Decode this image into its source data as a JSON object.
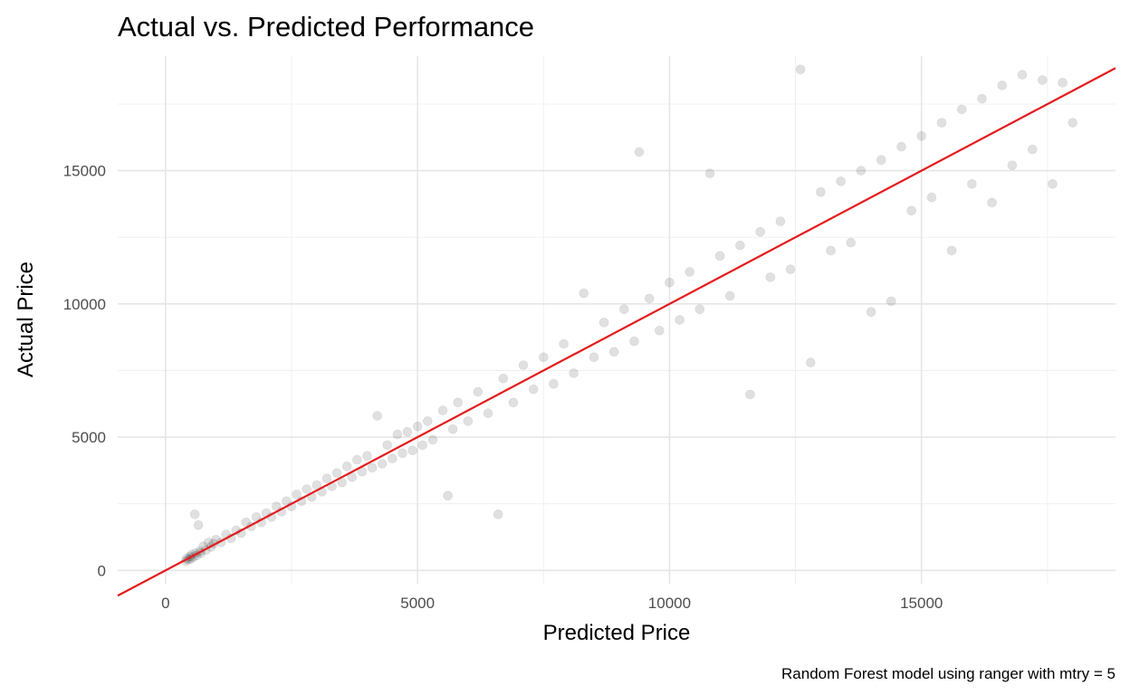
{
  "chart_data": {
    "type": "scatter",
    "title": "Actual vs. Predicted Performance",
    "caption": "Random Forest model using ranger with mtry = 5",
    "xlabel": "Predicted Price",
    "ylabel": "Actual Price",
    "xlim": [
      -950,
      18850
    ],
    "ylim": [
      -500,
      19300
    ],
    "x_ticks": [
      0,
      5000,
      10000,
      15000
    ],
    "y_ticks": [
      0,
      5000,
      10000,
      15000
    ],
    "x_tick_labels": [
      "0",
      "5000",
      "10000",
      "15000"
    ],
    "y_tick_labels": [
      "0",
      "5000",
      "10000",
      "15000"
    ],
    "grid": true,
    "legend": "none",
    "reference_line": {
      "type": "identity",
      "slope": 1,
      "intercept": 0,
      "color": "#e41a1c"
    },
    "point_color": "#000000",
    "point_alpha": 0.12,
    "series": [
      {
        "values": [
          [
            400,
            350
          ],
          [
            420,
            450
          ],
          [
            450,
            400
          ],
          [
            480,
            520
          ],
          [
            500,
            430
          ],
          [
            520,
            600
          ],
          [
            550,
            500
          ],
          [
            580,
            2100
          ],
          [
            600,
            650
          ],
          [
            620,
            560
          ],
          [
            650,
            1700
          ],
          [
            680,
            720
          ],
          [
            700,
            640
          ],
          [
            750,
            900
          ],
          [
            800,
            760
          ],
          [
            850,
            1050
          ],
          [
            900,
            880
          ],
          [
            950,
            1000
          ],
          [
            1000,
            1150
          ],
          [
            1100,
            1050
          ],
          [
            1200,
            1350
          ],
          [
            1300,
            1200
          ],
          [
            1400,
            1500
          ],
          [
            1500,
            1400
          ],
          [
            1600,
            1800
          ],
          [
            1700,
            1650
          ],
          [
            1800,
            2000
          ],
          [
            1900,
            1800
          ],
          [
            2000,
            2150
          ],
          [
            2100,
            2000
          ],
          [
            2200,
            2400
          ],
          [
            2300,
            2200
          ],
          [
            2400,
            2600
          ],
          [
            2500,
            2400
          ],
          [
            2600,
            2850
          ],
          [
            2700,
            2600
          ],
          [
            2800,
            3050
          ],
          [
            2900,
            2750
          ],
          [
            3000,
            3200
          ],
          [
            3100,
            2950
          ],
          [
            3200,
            3450
          ],
          [
            3300,
            3150
          ],
          [
            3400,
            3650
          ],
          [
            3500,
            3300
          ],
          [
            3600,
            3900
          ],
          [
            3700,
            3500
          ],
          [
            3800,
            4150
          ],
          [
            3900,
            3700
          ],
          [
            4000,
            4300
          ],
          [
            4100,
            3850
          ],
          [
            4200,
            5800
          ],
          [
            4300,
            4000
          ],
          [
            4400,
            4700
          ],
          [
            4500,
            4200
          ],
          [
            4600,
            5100
          ],
          [
            4700,
            4400
          ],
          [
            4800,
            5200
          ],
          [
            4900,
            4500
          ],
          [
            5000,
            5400
          ],
          [
            5100,
            4700
          ],
          [
            5200,
            5600
          ],
          [
            5300,
            4900
          ],
          [
            5500,
            6000
          ],
          [
            5600,
            2800
          ],
          [
            5700,
            5300
          ],
          [
            5800,
            6300
          ],
          [
            6000,
            5600
          ],
          [
            6200,
            6700
          ],
          [
            6400,
            5900
          ],
          [
            6600,
            2100
          ],
          [
            6700,
            7200
          ],
          [
            6900,
            6300
          ],
          [
            7100,
            7700
          ],
          [
            7300,
            6800
          ],
          [
            7500,
            8000
          ],
          [
            7700,
            7000
          ],
          [
            7900,
            8500
          ],
          [
            8100,
            7400
          ],
          [
            8300,
            10400
          ],
          [
            8500,
            8000
          ],
          [
            8700,
            9300
          ],
          [
            8900,
            8200
          ],
          [
            9100,
            9800
          ],
          [
            9300,
            8600
          ],
          [
            9400,
            15700
          ],
          [
            9600,
            10200
          ],
          [
            9800,
            9000
          ],
          [
            10000,
            10800
          ],
          [
            10200,
            9400
          ],
          [
            10400,
            11200
          ],
          [
            10600,
            9800
          ],
          [
            10800,
            14900
          ],
          [
            11000,
            11800
          ],
          [
            11200,
            10300
          ],
          [
            11400,
            12200
          ],
          [
            11600,
            6600
          ],
          [
            11800,
            12700
          ],
          [
            12000,
            11000
          ],
          [
            12200,
            13100
          ],
          [
            12400,
            11300
          ],
          [
            12600,
            18800
          ],
          [
            12800,
            7800
          ],
          [
            13000,
            14200
          ],
          [
            13200,
            12000
          ],
          [
            13400,
            14600
          ],
          [
            13600,
            12300
          ],
          [
            13800,
            15000
          ],
          [
            14000,
            9700
          ],
          [
            14200,
            15400
          ],
          [
            14400,
            10100
          ],
          [
            14600,
            15900
          ],
          [
            14800,
            13500
          ],
          [
            15000,
            16300
          ],
          [
            15200,
            14000
          ],
          [
            15400,
            16800
          ],
          [
            15600,
            12000
          ],
          [
            15800,
            17300
          ],
          [
            16000,
            14500
          ],
          [
            16200,
            17700
          ],
          [
            16400,
            13800
          ],
          [
            16600,
            18200
          ],
          [
            16800,
            15200
          ],
          [
            17000,
            18600
          ],
          [
            17200,
            15800
          ],
          [
            17400,
            18400
          ],
          [
            17600,
            14500
          ],
          [
            17800,
            18300
          ],
          [
            18000,
            16800
          ]
        ]
      }
    ]
  }
}
